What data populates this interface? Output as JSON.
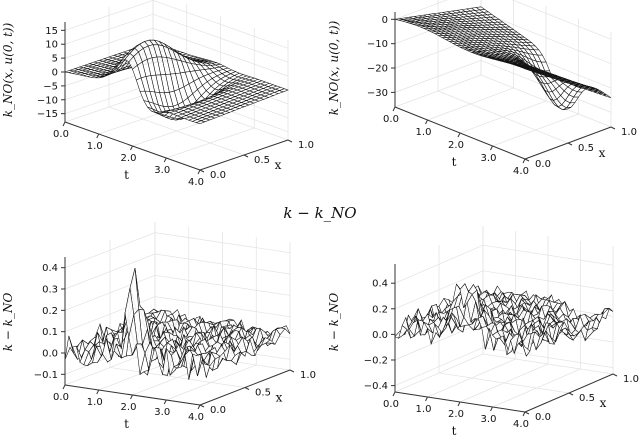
{
  "middle_title": "k − k_NO",
  "chart_data": [
    {
      "type": "surface",
      "panel": "top-left",
      "title": "",
      "xlabel": "t",
      "ylabel": "x",
      "zlabel": "k_NO(x, u(0, t))",
      "t_ticks": [
        "0.0",
        "1.0",
        "2.0",
        "3.0",
        "4.0"
      ],
      "x_ticks": [
        "0.0",
        "0.5",
        "1.0"
      ],
      "z_ticks": [
        "15",
        "10",
        "5",
        "0",
        "−5",
        "−10",
        "−15"
      ],
      "t_range": [
        0,
        4
      ],
      "x_range": [
        0,
        1
      ],
      "z_range": [
        -18,
        18
      ],
      "grid": true,
      "features": [
        {
          "t": 1.9,
          "x": 0.25,
          "value": 17.5,
          "kind": "peak"
        },
        {
          "t": 2.2,
          "x": 0.3,
          "value": -11,
          "kind": "trough"
        },
        {
          "t": 2.5,
          "x": 0.35,
          "value": -10,
          "kind": "trough"
        }
      ]
    },
    {
      "type": "surface",
      "panel": "top-right",
      "title": "",
      "xlabel": "t",
      "ylabel": "x",
      "zlabel": "k_NO(x, u(0, t))",
      "t_ticks": [
        "0.0",
        "1.0",
        "2.0",
        "3.0",
        "4.0"
      ],
      "x_ticks": [
        "0.0",
        "0.5",
        "1.0"
      ],
      "z_ticks": [
        "0",
        "−10",
        "−20",
        "−30"
      ],
      "t_range": [
        0,
        4
      ],
      "x_range": [
        0,
        1
      ],
      "z_range": [
        -36,
        3
      ],
      "grid": true,
      "features": [
        {
          "t": 0.0,
          "x": 0.0,
          "value": 0,
          "kind": "plateau"
        },
        {
          "t": 2.6,
          "x": 0.95,
          "value": -33,
          "kind": "trough"
        },
        {
          "t": 4.0,
          "x": 1.0,
          "value": -20,
          "kind": "edge"
        }
      ]
    },
    {
      "type": "surface",
      "panel": "bottom-left",
      "title": "",
      "xlabel": "t",
      "ylabel": "x",
      "zlabel": "k − k_NO",
      "t_ticks": [
        "0.0",
        "1.0",
        "2.0",
        "3.0",
        "4.0"
      ],
      "x_ticks": [
        "0.0",
        "0.5",
        "1.0"
      ],
      "z_ticks": [
        "0.4",
        "0.3",
        "0.2",
        "0.1",
        "0.0",
        "−0.1"
      ],
      "t_range": [
        0,
        4
      ],
      "x_range": [
        0,
        1
      ],
      "z_range": [
        -0.15,
        0.45
      ],
      "grid": true,
      "features": [
        {
          "t": 1.8,
          "x": 0.1,
          "value": 0.43,
          "kind": "spike"
        },
        {
          "t": 1.5,
          "x": 0.15,
          "value": 0.2,
          "kind": "spike"
        },
        {
          "t": 0.6,
          "x": 0.9,
          "value": -0.1,
          "kind": "noise"
        }
      ]
    },
    {
      "type": "surface",
      "panel": "bottom-right",
      "title": "",
      "xlabel": "t",
      "ylabel": "x",
      "zlabel": "k − k_NO",
      "t_ticks": [
        "0.0",
        "1.0",
        "2.0",
        "3.0",
        "4.0"
      ],
      "x_ticks": [
        "0.0",
        "0.5",
        "1.0"
      ],
      "z_ticks": [
        "0.4",
        "0.2",
        "0.0",
        "−0.2",
        "−0.4"
      ],
      "t_range": [
        0,
        4
      ],
      "x_range": [
        0,
        1
      ],
      "z_range": [
        -0.45,
        0.55
      ],
      "grid": true,
      "features": [
        {
          "t": 2.0,
          "x": 0.05,
          "value": 0.5,
          "kind": "spike"
        },
        {
          "t": 3.3,
          "x": 0.9,
          "value": -0.25,
          "kind": "trough"
        }
      ]
    }
  ]
}
